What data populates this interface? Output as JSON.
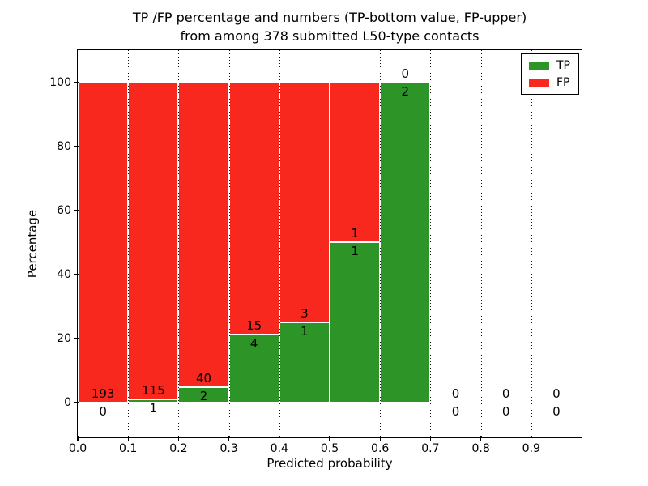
{
  "title": {
    "line1": "TP /FP percentage and numbers (TP-bottom value, FP-upper)",
    "line2": "from among 378 submitted L50-type contacts"
  },
  "axes": {
    "xlabel": "Predicted probability",
    "ylabel": "Percentage"
  },
  "legend": {
    "position": "upper right",
    "items": [
      {
        "label": "TP",
        "color": "#2d9428"
      },
      {
        "label": "FP",
        "color": "#f8281e"
      }
    ]
  },
  "chart_data": {
    "type": "bar",
    "stacked": true,
    "normalized_to_percent": true,
    "title": "TP /FP percentage and numbers (TP-bottom value, FP-upper) from among 378 submitted L50-type contacts",
    "xlabel": "Predicted probability",
    "ylabel": "Percentage",
    "total_submitted_contacts": 378,
    "xlim": [
      0.0,
      1.0
    ],
    "ylim": [
      -11,
      110
    ],
    "xticks": [
      "0.0",
      "0.1",
      "0.2",
      "0.3",
      "0.4",
      "0.5",
      "0.6",
      "0.7",
      "0.8",
      "0.9"
    ],
    "yticks": [
      "0",
      "20",
      "40",
      "60",
      "80",
      "100"
    ],
    "ytick_values": [
      0,
      20,
      40,
      60,
      80,
      100
    ],
    "grid": true,
    "grid_style": "dotted",
    "legend_position": "upper right",
    "bin_width": 0.1,
    "categories": [
      "0.0-0.1",
      "0.1-0.2",
      "0.2-0.3",
      "0.3-0.4",
      "0.4-0.5",
      "0.5-0.6",
      "0.6-0.7",
      "0.7-0.8",
      "0.8-0.9",
      "0.9-1.0"
    ],
    "series": [
      {
        "name": "TP",
        "color": "#2d9428",
        "counts": [
          0,
          1,
          2,
          4,
          1,
          1,
          2,
          0,
          0,
          0
        ]
      },
      {
        "name": "FP",
        "color": "#f8281e",
        "counts": [
          193,
          115,
          40,
          15,
          3,
          1,
          0,
          0,
          0,
          0
        ]
      }
    ],
    "tp_percent_heights": [
      0.0,
      0.9,
      4.8,
      21.1,
      25.0,
      50.0,
      100.0,
      null,
      null,
      null
    ],
    "bar_edge_color": "#ffffff",
    "annotation_note": "TP count printed below the TP/FP boundary, FP count printed above it"
  }
}
